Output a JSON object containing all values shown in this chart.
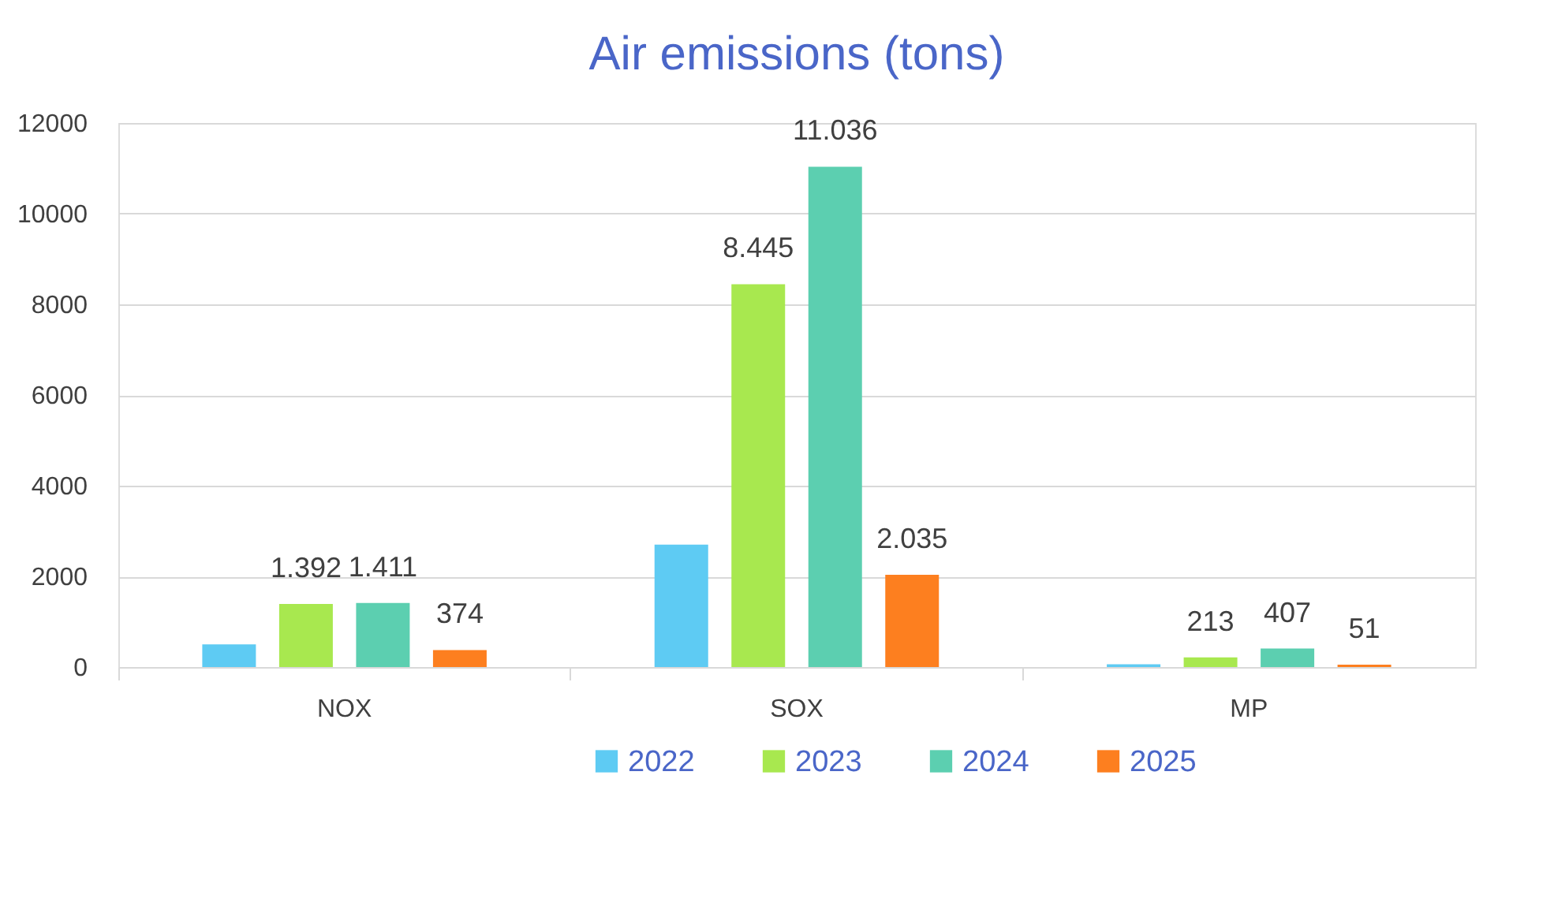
{
  "chart_data": {
    "type": "bar",
    "title": "Air emissions (tons)",
    "categories": [
      "NOX",
      "SOX",
      "MP"
    ],
    "series": [
      {
        "name": "2022",
        "color": "#5ecbf3",
        "values": [
          500,
          2700,
          60
        ],
        "value_labels": [
          null,
          null,
          null
        ]
      },
      {
        "name": "2023",
        "color": "#a8e84f",
        "values": [
          1392,
          8445,
          213
        ],
        "value_labels": [
          "1.392",
          "8.445",
          "213"
        ]
      },
      {
        "name": "2024",
        "color": "#5ccfb0",
        "values": [
          1411,
          11036,
          407
        ],
        "value_labels": [
          "1.411",
          "11.036",
          "407"
        ]
      },
      {
        "name": "2025",
        "color": "#fd7f1f",
        "values": [
          374,
          2035,
          51
        ],
        "value_labels": [
          "374",
          "2.035",
          "51"
        ]
      }
    ],
    "ylim": [
      0,
      12000
    ],
    "yticks": [
      0,
      2000,
      4000,
      6000,
      8000,
      10000,
      12000
    ],
    "grid": "y",
    "legend": "bottom"
  }
}
